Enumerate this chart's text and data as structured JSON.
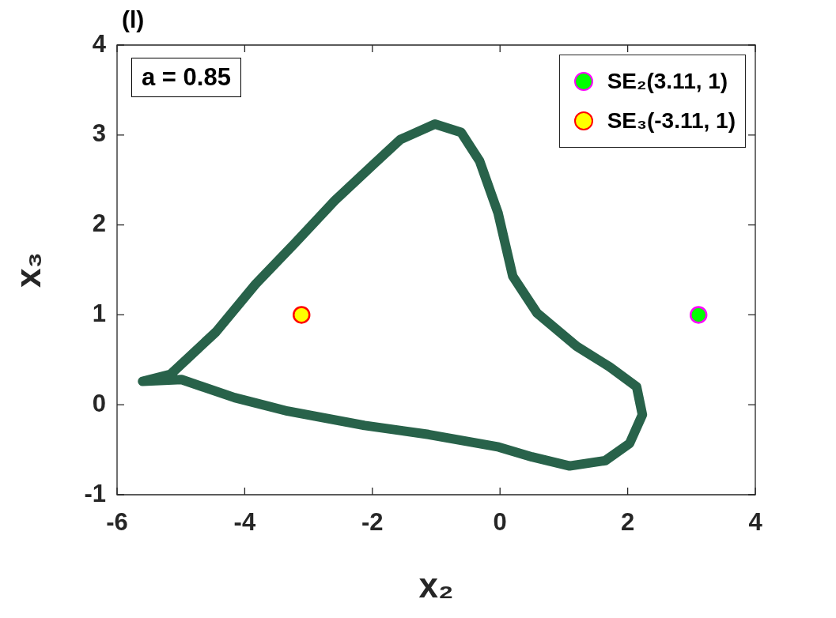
{
  "chart_data": {
    "type": "scatter",
    "title": "(l)",
    "xlabel": "x₂",
    "ylabel": "x₃",
    "xlim": [
      -6,
      4
    ],
    "xticks": [
      -6,
      -4,
      -2,
      0,
      2,
      4
    ],
    "ylim": [
      -1,
      4
    ],
    "yticks": [
      -1,
      0,
      1,
      2,
      3,
      4
    ],
    "grid": false,
    "legend": "top right",
    "annotations": [
      "a = 0.85"
    ],
    "series": [
      {
        "type": "scatter",
        "name": "SE₂(3.11, 1)",
        "color": "#00ff00",
        "x": [
          3.11
        ],
        "values": [
          1
        ]
      },
      {
        "type": "scatter",
        "name": "SE₃(-3.11, 1)",
        "color": "#ffff00",
        "x": [
          -3.11
        ],
        "values": [
          1
        ]
      }
    ]
  }
}
